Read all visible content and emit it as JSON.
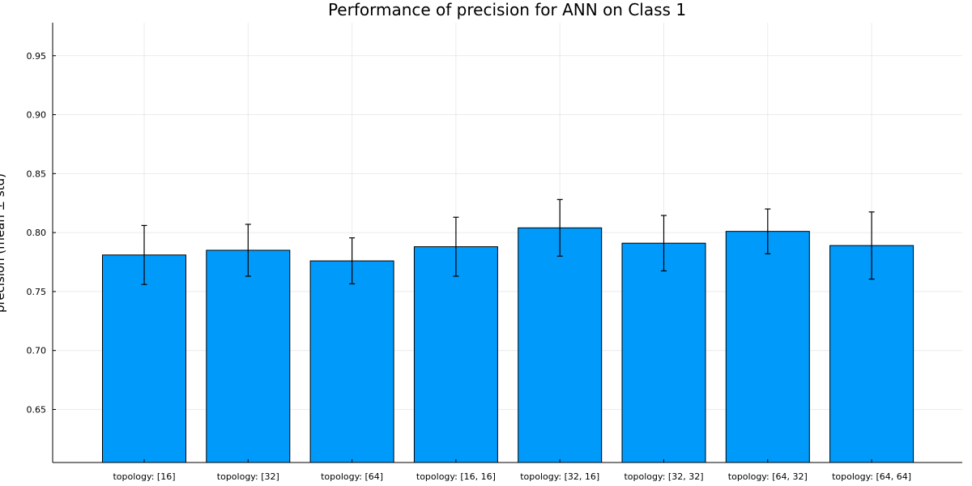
{
  "chart_data": {
    "type": "bar",
    "title": "Performance of precision for ANN on Class 1",
    "ylabel": "precision (mean ± std)",
    "xlabel": "",
    "categories": [
      "topology: [16]",
      "topology: [32]",
      "topology: [64]",
      "topology: [16, 16]",
      "topology: [32, 16]",
      "topology: [32, 32]",
      "topology: [64, 32]",
      "topology: [64, 64]"
    ],
    "values": [
      0.781,
      0.785,
      0.776,
      0.788,
      0.804,
      0.791,
      0.801,
      0.789
    ],
    "std": [
      0.025,
      0.022,
      0.0195,
      0.025,
      0.024,
      0.0235,
      0.019,
      0.0285
    ],
    "ylim": [
      0.605,
      0.978
    ],
    "yticks": [
      0.65,
      0.7,
      0.75,
      0.8,
      0.85,
      0.9,
      0.95
    ],
    "ytick_labels": [
      "0.65",
      "0.70",
      "0.75",
      "0.80",
      "0.85",
      "0.90",
      "0.95"
    ],
    "bar_color": "#009AFA",
    "grid": true,
    "legend": "none"
  }
}
